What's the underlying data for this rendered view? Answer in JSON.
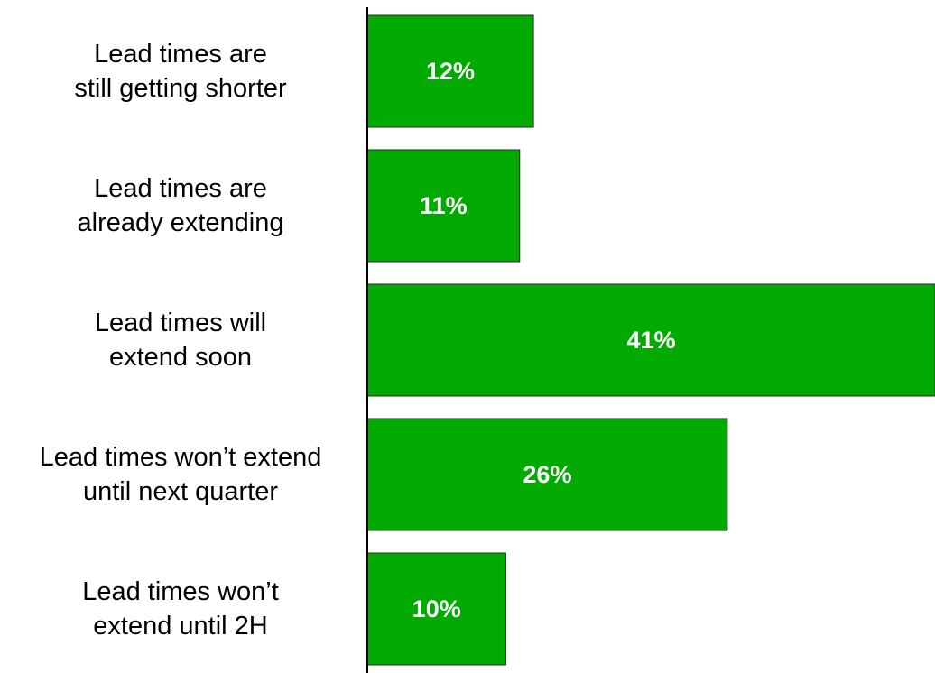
{
  "chart_data": {
    "type": "bar",
    "orientation": "horizontal",
    "categories": [
      "Lead times are still getting shorter",
      "Lead times are already extending",
      "Lead times will extend soon",
      "Lead times won’t extend until next quarter",
      "Lead times won’t extend until 2H"
    ],
    "category_lines": [
      [
        "Lead times are",
        "still getting shorter"
      ],
      [
        "Lead times are",
        "already extending"
      ],
      [
        "Lead times will",
        "extend soon"
      ],
      [
        "Lead times won’t extend",
        "until next quarter"
      ],
      [
        "Lead times won’t",
        "extend until 2H"
      ]
    ],
    "values": [
      12,
      11,
      41,
      26,
      10
    ],
    "data_labels": [
      "12%",
      "11%",
      "41%",
      "26%",
      "10%"
    ],
    "unit": "%",
    "xlim": [
      0,
      41
    ],
    "grid": false,
    "legend": "none",
    "title": "",
    "xlabel": "",
    "ylabel": "",
    "colors": {
      "bar": "#00AA00",
      "bar_stroke": "#2a2a2a",
      "axis": "#000000",
      "label": "#000000",
      "value_label": "#FFFFFF"
    }
  }
}
